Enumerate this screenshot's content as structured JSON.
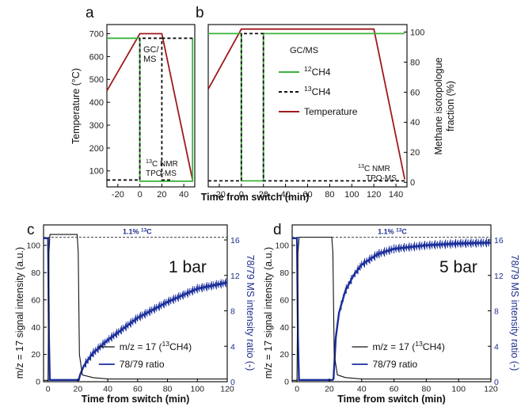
{
  "colors": {
    "green": "#3cb43c",
    "black": "#111111",
    "red": "#a0191c",
    "blue": "#1a2e9b",
    "ratio_label": "#1f2f8f"
  },
  "chart_data": [
    {
      "panel": "a",
      "type": "line",
      "ylabel": "Temperature (°C)",
      "xlim": [
        -30,
        50
      ],
      "ylim": [
        30,
        740
      ],
      "xticks": [
        -20,
        0,
        20,
        40
      ],
      "yticks": [
        100,
        200,
        300,
        400,
        500,
        600,
        700
      ],
      "annotations": [
        "GC/",
        "MS",
        "13C NMR",
        "TPO-MS"
      ],
      "series": [
        {
          "name": "Temperature",
          "color": "red",
          "dash": false,
          "x": [
            -30,
            0,
            20,
            48
          ],
          "y": [
            450,
            700,
            700,
            60
          ]
        },
        {
          "name": "12CH4",
          "color": "green",
          "dash": false,
          "x": [
            -30,
            0,
            0,
            48,
            48
          ],
          "y": [
            680,
            680,
            55,
            55,
            680
          ]
        },
        {
          "name": "13CH4",
          "color": "black",
          "dash": true,
          "x": [
            -30,
            0,
            0,
            20,
            20,
            30
          ],
          "y": [
            60,
            60,
            680,
            680,
            60,
            60
          ]
        },
        {
          "name": "13CH4-top",
          "color": "black",
          "dash": true,
          "x": [
            20,
            48
          ],
          "y": [
            680,
            680
          ]
        }
      ]
    },
    {
      "panel": "b",
      "type": "line",
      "ylabel": "Methane isotopologue fraction (%)",
      "xlim": [
        -30,
        150
      ],
      "ylim": [
        -3,
        105
      ],
      "xticks": [
        -20,
        0,
        20,
        40,
        60,
        80,
        100,
        120,
        140
      ],
      "yticks": [
        0,
        20,
        40,
        60,
        80,
        100
      ],
      "legend": [
        "12CH4",
        "13CH4",
        "Temperature"
      ],
      "annotations": [
        "GC/MS",
        "13C NMR",
        "TPO-MS"
      ],
      "series": [
        {
          "name": "Temperature",
          "color": "red",
          "dash": false,
          "x": [
            -30,
            0,
            120,
            148
          ],
          "y": [
            62,
            102,
            102,
            2
          ]
        },
        {
          "name": "12CH4",
          "color": "green",
          "dash": false,
          "x": [
            -30,
            0,
            0,
            20,
            20,
            148
          ],
          "y": [
            99,
            99,
            1,
            1,
            99,
            99
          ]
        },
        {
          "name": "13CH4",
          "color": "black",
          "dash": true,
          "x": [
            -30,
            0,
            0,
            20,
            20,
            148
          ],
          "y": [
            1,
            1,
            99,
            99,
            1,
            1
          ]
        }
      ],
      "shared_xlabel": "Time from switch (min)"
    },
    {
      "panel": "c",
      "type": "line",
      "label": "1 bar",
      "xlabel": "Time from switch (min)",
      "ylabel": "m/z = 17 signal intensity (a.u.)",
      "y2label": "78/79 MS intensity ratio (-)",
      "xlim": [
        -3,
        120
      ],
      "ylim": [
        0,
        115
      ],
      "y2lim": [
        0,
        17.7
      ],
      "xticks": [
        0,
        20,
        40,
        60,
        80,
        100,
        120
      ],
      "yticks": [
        0,
        20,
        40,
        60,
        80,
        100
      ],
      "y2ticks": [
        0,
        4,
        8,
        12,
        16
      ],
      "reference": {
        "label": "1.1% 13C",
        "y2": 16.3
      },
      "series": [
        {
          "name": "m/z = 17 (13CH4)",
          "axis": "left",
          "x": [
            -3,
            0,
            0.6,
            1.3,
            19.5,
            20.2,
            21,
            23,
            30,
            40,
            60,
            90,
            120
          ],
          "y": [
            1,
            1,
            95,
            108,
            108,
            95,
            20,
            5,
            3,
            2,
            2,
            2,
            2
          ]
        },
        {
          "name": "78/79 ratio",
          "axis": "right",
          "x": [
            -3,
            0,
            0.6,
            1.2,
            20,
            20.6,
            21.5,
            24,
            30,
            40,
            60,
            80,
            100,
            120
          ],
          "y": [
            16.2,
            16.2,
            5,
            0.2,
            0.2,
            0.2,
            0.8,
            1.8,
            3.2,
            4.7,
            7.2,
            9.0,
            10.5,
            11.2
          ]
        }
      ],
      "legend": [
        "m/z = 17 (13CH4)",
        "78/79 ratio"
      ]
    },
    {
      "panel": "d",
      "type": "line",
      "label": "5 bar",
      "xlabel": "Time from switch (min)",
      "ylabel": "m/z = 17 signal intensity (a.u.)",
      "y2label": "78/79 MS intensity ratio (-)",
      "xlim": [
        -3,
        120
      ],
      "ylim": [
        0,
        115
      ],
      "y2lim": [
        0,
        17.7
      ],
      "xticks": [
        0,
        20,
        40,
        60,
        80,
        100,
        120
      ],
      "yticks": [
        0,
        20,
        40,
        60,
        80,
        100
      ],
      "y2ticks": [
        0,
        4,
        8,
        12,
        16
      ],
      "reference": {
        "label": "1.1% 13C",
        "y2": 16.3
      },
      "series": [
        {
          "name": "m/z = 17 (13CH4)",
          "axis": "left",
          "x": [
            -3,
            0,
            0.6,
            1.3,
            21.5,
            22.2,
            23,
            25,
            30,
            40,
            60,
            90,
            120
          ],
          "y": [
            1,
            1,
            95,
            106,
            106,
            95,
            20,
            5,
            3,
            2,
            2,
            2,
            2
          ]
        },
        {
          "name": "78/79 ratio",
          "axis": "right",
          "x": [
            -3,
            0,
            0.6,
            1.2,
            22,
            22.6,
            24,
            26,
            30,
            35,
            40,
            50,
            60,
            80,
            100,
            120
          ],
          "y": [
            16.2,
            16.2,
            5,
            0.2,
            0.2,
            0.3,
            5,
            7.8,
            10.3,
            12.0,
            13.2,
            14.4,
            15.0,
            15.4,
            15.6,
            15.7
          ]
        }
      ],
      "legend": [
        "m/z = 17 (13CH4)",
        "78/79 ratio"
      ]
    }
  ]
}
